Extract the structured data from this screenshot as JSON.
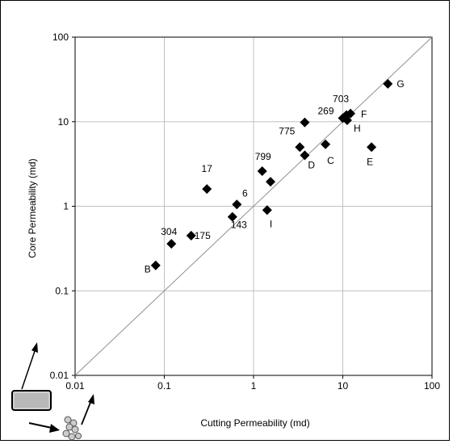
{
  "chart_data": {
    "type": "scatter",
    "title": "",
    "xlabel": "Cutting Permeability (md)",
    "ylabel": "Core Permeability (md)",
    "x_scale": "log",
    "y_scale": "log",
    "xlim": [
      0.01,
      100
    ],
    "ylim": [
      0.01,
      100
    ],
    "x_ticks": [
      "0.01",
      "0.1",
      "1",
      "10",
      "100"
    ],
    "y_ticks": [
      "0.01",
      "0.1",
      "1",
      "10",
      "100"
    ],
    "grid": true,
    "legend": "none",
    "reference_line": "1:1",
    "marker": "diamond",
    "colors": {
      "marker": "#000000",
      "grid": "#c0c0c0",
      "reference_line": "#909090"
    },
    "points": [
      {
        "label": "B",
        "x": 0.08,
        "y": 0.2
      },
      {
        "label": "304",
        "x": 0.12,
        "y": 0.36
      },
      {
        "label": "175",
        "x": 0.2,
        "y": 0.45
      },
      {
        "label": "17",
        "x": 0.3,
        "y": 1.6
      },
      {
        "label": "143",
        "x": 0.58,
        "y": 0.75
      },
      {
        "label": "6",
        "x": 0.65,
        "y": 1.05
      },
      {
        "label": "799",
        "x": 1.25,
        "y": 2.6
      },
      {
        "label": "",
        "x": 1.55,
        "y": 1.95
      },
      {
        "label": "I",
        "x": 1.42,
        "y": 0.9
      },
      {
        "label": "775",
        "x": 3.3,
        "y": 5.0
      },
      {
        "label": "",
        "x": 3.75,
        "y": 9.8
      },
      {
        "label": "D",
        "x": 3.75,
        "y": 4.0
      },
      {
        "label": "C",
        "x": 6.4,
        "y": 5.4
      },
      {
        "label": "269",
        "x": 10.0,
        "y": 11.0
      },
      {
        "label": "703",
        "x": 11.0,
        "y": 12.0
      },
      {
        "label": "H",
        "x": 11.2,
        "y": 10.4
      },
      {
        "label": "F",
        "x": 12.2,
        "y": 12.5
      },
      {
        "label": "E",
        "x": 21.0,
        "y": 5.0
      },
      {
        "label": "G",
        "x": 32.0,
        "y": 28.0
      }
    ]
  }
}
